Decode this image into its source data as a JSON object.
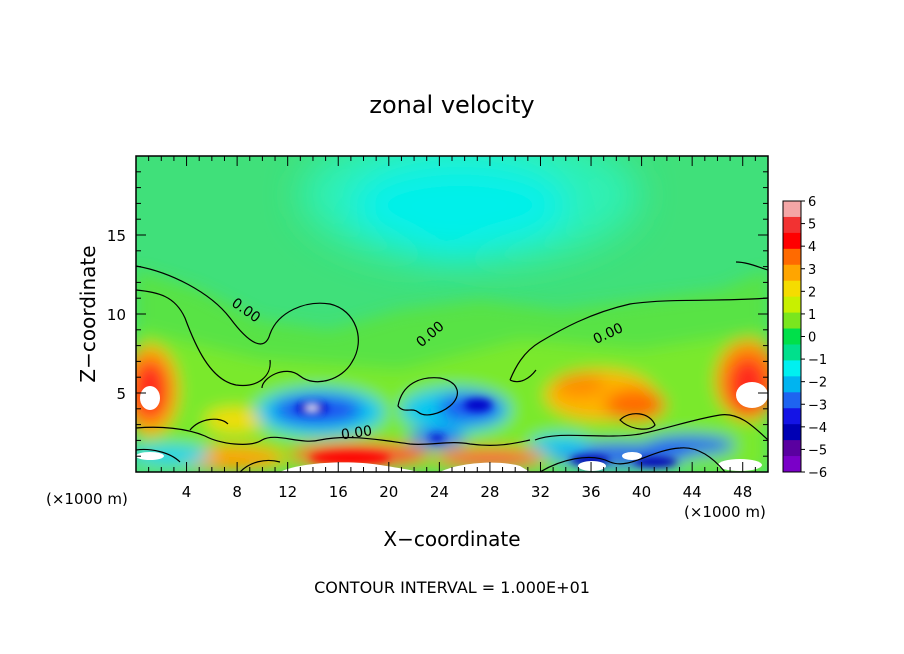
{
  "chart_data": {
    "type": "heatmap",
    "title": "zonal velocity",
    "xlabel": "X−coordinate",
    "ylabel": "Z−coordinate",
    "x_unit": "(×1000 m)",
    "x_unit_right": "(×1000 m)",
    "xlim": [
      0,
      50
    ],
    "ylim": [
      0,
      20
    ],
    "x_ticks": [
      4,
      8,
      12,
      16,
      20,
      24,
      28,
      32,
      36,
      40,
      44,
      48
    ],
    "y_ticks": [
      5,
      10,
      15
    ],
    "colorbar": {
      "range": [
        -6,
        6
      ],
      "ticks": [
        6,
        5,
        4,
        3,
        2,
        1,
        0,
        -1,
        -2,
        -3,
        -4,
        -5,
        -6
      ],
      "tick_labels": [
        "6",
        "5",
        "4",
        "3",
        "2",
        "1",
        "0",
        "−1",
        "−2",
        "−3",
        "−4",
        "−5",
        "−6"
      ],
      "colors": [
        "#f4a6a6",
        "#f23232",
        "#ff0000",
        "#ff6a00",
        "#ffa500",
        "#f5dc00",
        "#c8f000",
        "#7ae61e",
        "#00e04a",
        "#00e08c",
        "#00f0f0",
        "#00b4f0",
        "#1e64f0",
        "#1414e6",
        "#0000b4",
        "#5a00a0",
        "#7a00c8"
      ]
    },
    "contour_labels": [
      {
        "text": "0.00",
        "x": 8.5,
        "z": 10.0
      },
      {
        "text": "0.00",
        "x": 23.5,
        "z": 8.5
      },
      {
        "text": "0.00",
        "x": 37.5,
        "z": 8.5
      },
      {
        "text": "0.00",
        "x": 17.5,
        "z": 2.2
      }
    ],
    "footer": "CONTOUR INTERVAL = 1.000E+01",
    "features": [
      {
        "x": 1.0,
        "z": 5.0,
        "value": 5.0
      },
      {
        "x": 14.0,
        "z": 4.2,
        "value": -5.0
      },
      {
        "x": 18.0,
        "z": 1.0,
        "value": 5.5
      },
      {
        "x": 26.0,
        "z": 4.2,
        "value": -3.5
      },
      {
        "x": 24.0,
        "z": 2.3,
        "value": -4.0
      },
      {
        "x": 36.0,
        "z": 5.0,
        "value": 3.5
      },
      {
        "x": 48.5,
        "z": 5.0,
        "value": 5.5
      },
      {
        "x": 38.0,
        "z": 1.5,
        "value": -4.0
      },
      {
        "x": 26.0,
        "z": 17.0,
        "value": -2.0
      }
    ]
  }
}
